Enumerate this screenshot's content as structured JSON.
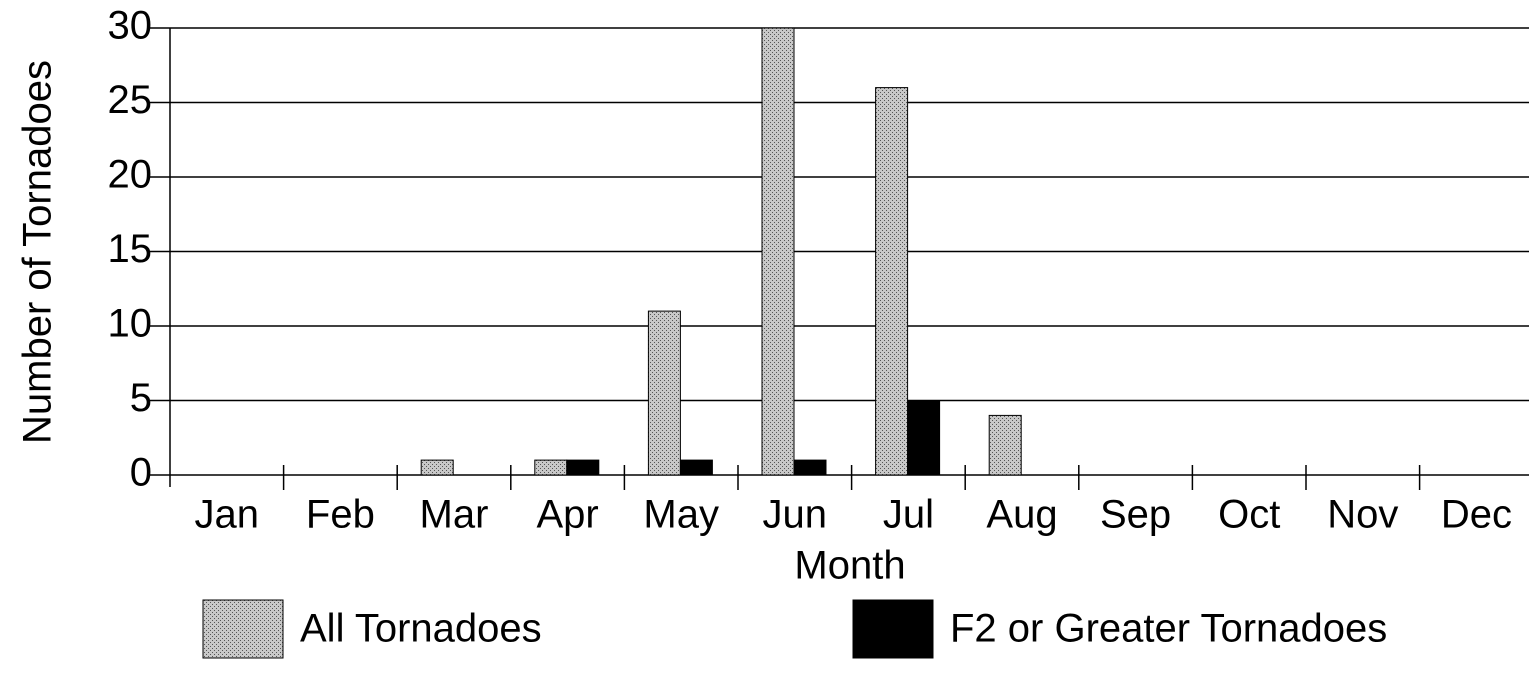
{
  "chart_data": {
    "type": "bar",
    "categories": [
      "Jan",
      "Feb",
      "Mar",
      "Apr",
      "May",
      "Jun",
      "Jul",
      "Aug",
      "Sep",
      "Oct",
      "Nov",
      "Dec"
    ],
    "series": [
      {
        "name": "All Tornadoes",
        "color": "#a9a9a9",
        "values": [
          0,
          0,
          1,
          1,
          11,
          30,
          26,
          4,
          0,
          0,
          0,
          0
        ]
      },
      {
        "name": "F2 or Greater Tornadoes",
        "color": "#000000",
        "values": [
          0,
          0,
          0,
          1,
          1,
          1,
          5,
          0,
          0,
          0,
          0,
          0
        ]
      }
    ],
    "xlabel": "Month",
    "ylabel": "Number of Tornadoes",
    "ylim": [
      0,
      30
    ],
    "yticks": [
      0,
      5,
      10,
      15,
      20,
      25,
      30
    ],
    "grid": true,
    "legend": "bottom"
  }
}
